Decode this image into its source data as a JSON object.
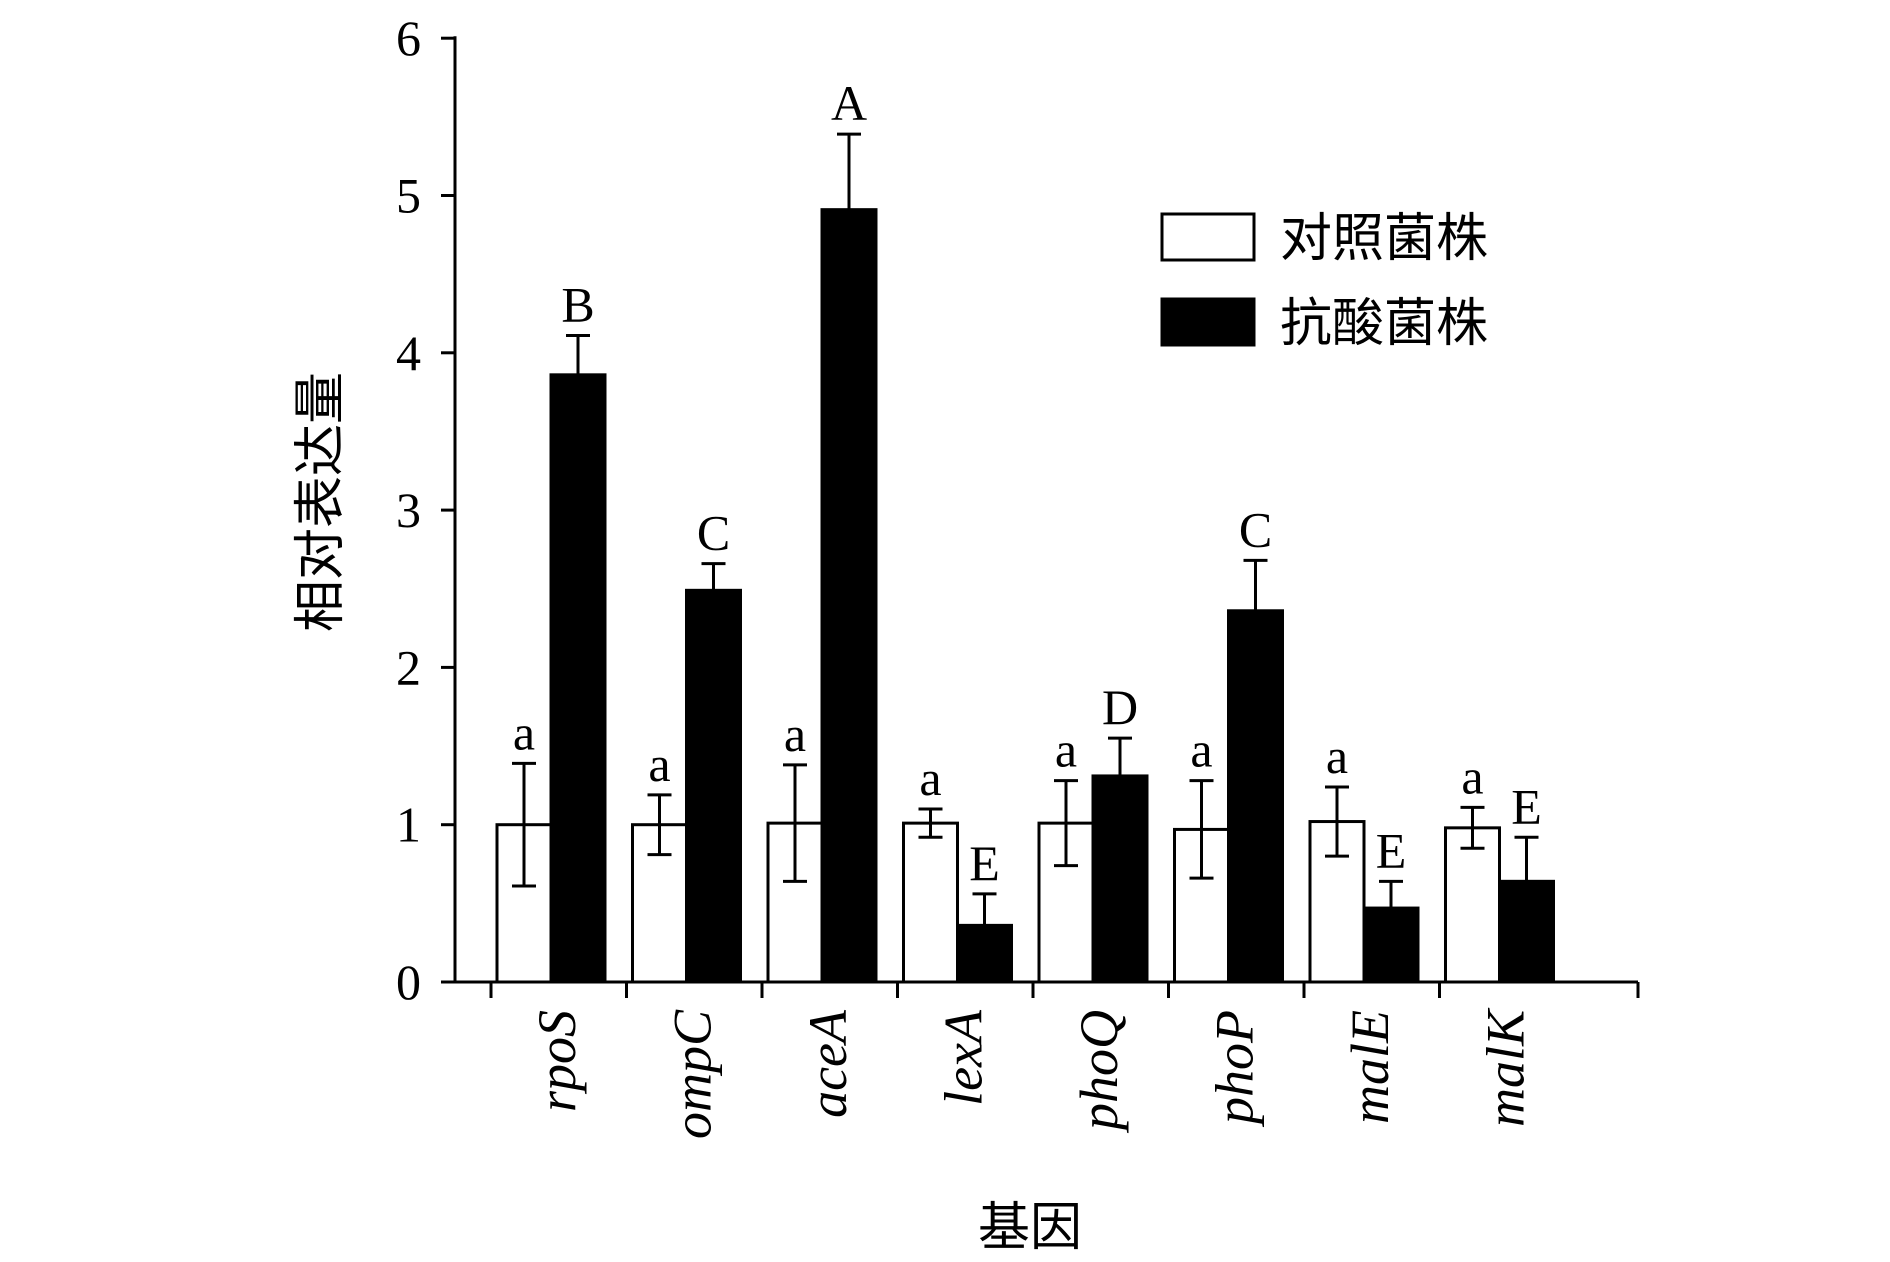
{
  "chart_data": {
    "type": "bar",
    "title": "",
    "xlabel": "基因",
    "ylabel": "相对表达量",
    "ylim": [
      0,
      6
    ],
    "yticks": [
      "0",
      "1",
      "2",
      "3",
      "4",
      "5",
      "6"
    ],
    "grid": false,
    "legend_position": "top-right",
    "categories": [
      "rpoS",
      "ompC",
      "aceA",
      "lexA",
      "phoQ",
      "phoP",
      "malE",
      "malK"
    ],
    "series": [
      {
        "name": "对照菌株",
        "color": "#ffffff",
        "values": [
          1.0,
          1.0,
          1.01,
          1.01,
          1.01,
          0.97,
          1.02,
          0.98
        ],
        "errors": [
          0.39,
          0.19,
          0.37,
          0.09,
          0.27,
          0.31,
          0.22,
          0.13
        ],
        "labels": [
          "a",
          "a",
          "a",
          "a",
          "a",
          "a",
          "a",
          "a"
        ]
      },
      {
        "name": "抗酸菌株",
        "color": "#000000",
        "values": [
          3.86,
          2.49,
          4.91,
          0.36,
          1.31,
          2.36,
          0.47,
          0.64
        ],
        "errors": [
          0.25,
          0.17,
          0.48,
          0.2,
          0.24,
          0.32,
          0.17,
          0.28
        ],
        "labels": [
          "B",
          "C",
          "A",
          "E",
          "D",
          "C",
          "E",
          "E"
        ]
      }
    ]
  }
}
